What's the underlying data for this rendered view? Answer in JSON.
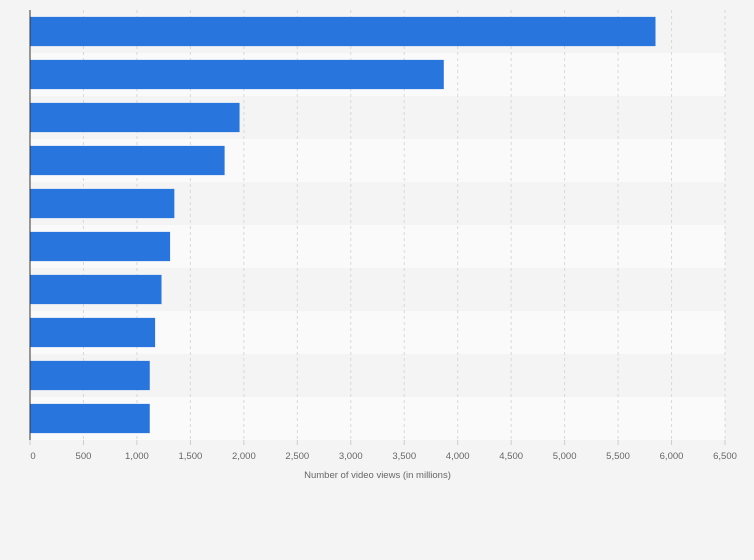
{
  "chart_data": {
    "type": "bar",
    "orientation": "horizontal",
    "categories": [
      "",
      "",
      "",
      "",
      "",
      "",
      "",
      "",
      "",
      ""
    ],
    "values": [
      5850,
      3870,
      1960,
      1820,
      1350,
      1310,
      1230,
      1170,
      1120,
      1120
    ],
    "title": "",
    "xlabel": "Number of video views (in millions)",
    "ylabel": "",
    "xlim": [
      0,
      6500
    ],
    "xticks": [
      0,
      500,
      1000,
      1500,
      2000,
      2500,
      3000,
      3500,
      4000,
      4500,
      5000,
      5500,
      6000,
      6500
    ],
    "xtick_labels": [
      "0",
      "500",
      "1,000",
      "1,500",
      "2,000",
      "2,500",
      "3,000",
      "3,500",
      "4,000",
      "4,500",
      "5,000",
      "5,500",
      "6,000",
      "6,500"
    ],
    "grid": true,
    "legend": "none",
    "bar_color": "#2876dd",
    "band_colors": [
      "#f4f4f4",
      "#fafafa"
    ]
  }
}
